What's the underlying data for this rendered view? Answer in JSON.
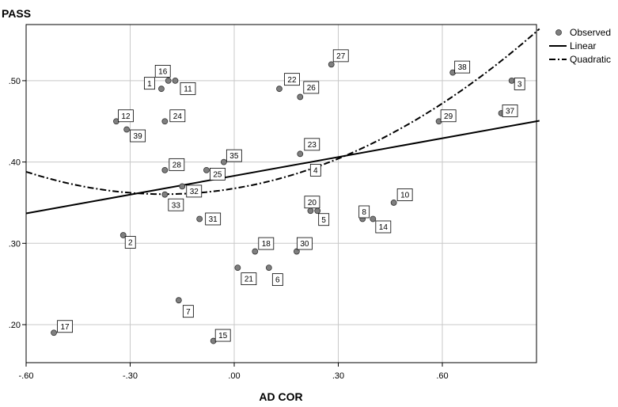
{
  "chart_data": {
    "type": "scatter",
    "title": "",
    "xlabel": "AD COR",
    "ylabel": "PASS",
    "xlim": [
      -0.6,
      0.88
    ],
    "ylim": [
      0.15,
      0.57
    ],
    "grid": true,
    "x_ticks": [
      -0.6,
      -0.3,
      0.0,
      0.3,
      0.6
    ],
    "x_tick_labels": [
      "-.60",
      "-.30",
      ".00",
      ".30",
      ".60"
    ],
    "y_ticks": [
      0.2,
      0.3,
      0.4,
      0.5
    ],
    "y_tick_labels": [
      ".20",
      ".30",
      ".40",
      ".50"
    ],
    "legend": {
      "placement": "top-right",
      "entries": [
        "Observed",
        "Linear",
        "Quadratic"
      ]
    },
    "linear_fit": {
      "intercept": 0.383,
      "slope": 0.077
    },
    "quadratic_fit": {
      "a": 0.1738,
      "b": 0.07,
      "c": 0.3675
    },
    "points": [
      {
        "label": "1",
        "x": -0.21,
        "y": 0.49
      },
      {
        "label": "2",
        "x": -0.32,
        "y": 0.31
      },
      {
        "label": "3",
        "x": 0.8,
        "y": 0.5
      },
      {
        "label": "4",
        "x": 0.23,
        "y": 0.39
      },
      {
        "label": "5",
        "x": 0.24,
        "y": 0.34
      },
      {
        "label": "6",
        "x": 0.1,
        "y": 0.27
      },
      {
        "label": "7",
        "x": -0.16,
        "y": 0.23
      },
      {
        "label": "8",
        "x": 0.37,
        "y": 0.33
      },
      {
        "label": "10",
        "x": 0.46,
        "y": 0.35
      },
      {
        "label": "11",
        "x": -0.17,
        "y": 0.5
      },
      {
        "label": "12",
        "x": -0.34,
        "y": 0.45
      },
      {
        "label": "14",
        "x": 0.4,
        "y": 0.33
      },
      {
        "label": "15",
        "x": -0.06,
        "y": 0.18
      },
      {
        "label": "16",
        "x": -0.19,
        "y": 0.5
      },
      {
        "label": "17",
        "x": -0.52,
        "y": 0.19
      },
      {
        "label": "18",
        "x": 0.06,
        "y": 0.29
      },
      {
        "label": "20",
        "x": 0.22,
        "y": 0.34
      },
      {
        "label": "21",
        "x": 0.01,
        "y": 0.27
      },
      {
        "label": "22",
        "x": 0.13,
        "y": 0.49
      },
      {
        "label": "23",
        "x": 0.19,
        "y": 0.41
      },
      {
        "label": "24",
        "x": -0.2,
        "y": 0.45
      },
      {
        "label": "25",
        "x": -0.08,
        "y": 0.39
      },
      {
        "label": "26",
        "x": 0.19,
        "y": 0.48
      },
      {
        "label": "27",
        "x": 0.28,
        "y": 0.52
      },
      {
        "label": "28",
        "x": -0.2,
        "y": 0.39
      },
      {
        "label": "29",
        "x": 0.59,
        "y": 0.45
      },
      {
        "label": "30",
        "x": 0.18,
        "y": 0.29
      },
      {
        "label": "31",
        "x": -0.1,
        "y": 0.33
      },
      {
        "label": "32",
        "x": -0.15,
        "y": 0.37
      },
      {
        "label": "33",
        "x": -0.2,
        "y": 0.36
      },
      {
        "label": "35",
        "x": -0.03,
        "y": 0.4
      },
      {
        "label": "37",
        "x": 0.77,
        "y": 0.46
      },
      {
        "label": "38",
        "x": 0.63,
        "y": 0.51
      },
      {
        "label": "39",
        "x": -0.31,
        "y": 0.44
      }
    ]
  }
}
